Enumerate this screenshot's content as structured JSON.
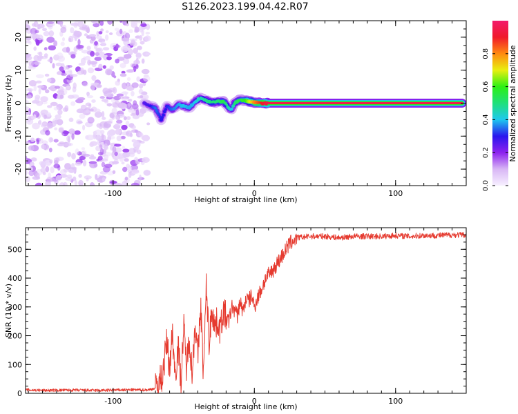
{
  "title": "S126.2023.199.04.42.R07",
  "colors": {
    "snr_line": "#e53a2f",
    "axis": "#000000",
    "colormap": [
      "#f7f0ff",
      "#d8b6f5",
      "#8d22ee",
      "#2a16ee",
      "#1ec8ee",
      "#1fe07a",
      "#2cf014",
      "#e8ef10",
      "#ff8a10",
      "#f01a2a",
      "#f21a6b"
    ]
  },
  "chart_data": [
    {
      "type": "heatmap",
      "name": "spectrogram",
      "xlabel": "Height of straight line (km)",
      "ylabel": "Frequency (Hz)",
      "xlim": [
        -162,
        150
      ],
      "ylim": [
        -25,
        25
      ],
      "xticks": [
        -100,
        0,
        100
      ],
      "xticklabels": [
        "-100",
        "0",
        "100"
      ],
      "yticks": [
        -20,
        -10,
        0,
        10,
        20
      ],
      "yticklabels": [
        "-20",
        "-10",
        "0",
        "10",
        "20"
      ],
      "noise_region_x": [
        -162,
        -75
      ],
      "tone_track": {
        "x": [
          -78,
          -73,
          -70,
          -66,
          -62,
          -58,
          -54,
          -50,
          -46,
          -42,
          -38,
          -34,
          -30,
          -26,
          -22,
          -18,
          -16,
          -14,
          -10,
          -6,
          -3,
          0,
          5,
          10,
          40,
          80,
          120,
          147
        ],
        "freq": [
          0,
          -1,
          -1.5,
          -5,
          -1,
          -2,
          -0.5,
          -0.8,
          -1.5,
          0.5,
          1.5,
          0.8,
          0.2,
          0.5,
          0.6,
          -1.5,
          -2,
          0,
          1,
          0.8,
          0.5,
          0.2,
          0,
          0,
          0,
          0,
          0,
          0
        ],
        "amplitude": [
          0.25,
          0.3,
          0.35,
          0.3,
          0.3,
          0.35,
          0.38,
          0.4,
          0.38,
          0.4,
          0.45,
          0.48,
          0.5,
          0.5,
          0.55,
          0.45,
          0.4,
          0.5,
          0.55,
          0.6,
          0.7,
          0.8,
          0.9,
          0.95,
          0.95,
          0.95,
          0.95,
          0.95
        ]
      },
      "colorbar": {
        "label": "Normalized spectral amplitude",
        "range": [
          0.0,
          1.0
        ],
        "ticks": [
          0.0,
          0.2,
          0.4,
          0.6,
          0.8
        ],
        "ticklabels": [
          "0.0",
          "0.2",
          "0.4",
          "0.6",
          "0.8"
        ]
      }
    },
    {
      "type": "line",
      "name": "snr",
      "xlabel": "Height of straight line (km)",
      "ylabel": "SNR (10 * v/v)",
      "xlim": [
        -162,
        150
      ],
      "ylim": [
        0,
        575
      ],
      "xticks": [
        -100,
        0,
        100
      ],
      "xticklabels": [
        "-100",
        "0",
        "100"
      ],
      "yticks": [
        0,
        100,
        200,
        300,
        400,
        500
      ],
      "yticklabels": [
        "0",
        "100",
        "200",
        "300",
        "400",
        "500"
      ],
      "series": [
        {
          "name": "SNR",
          "x": [
            -162,
            -150,
            -130,
            -110,
            -90,
            -75,
            -70,
            -65,
            -62,
            -60,
            -58,
            -56,
            -54,
            -52,
            -50,
            -48,
            -46,
            -44,
            -42,
            -40,
            -38,
            -36,
            -34,
            -32,
            -30,
            -28,
            -26,
            -24,
            -22,
            -20,
            -18,
            -16,
            -14,
            -12,
            -10,
            -8,
            -6,
            -4,
            -2,
            0,
            2,
            5,
            8,
            12,
            16,
            20,
            25,
            30,
            40,
            50,
            60,
            70,
            80,
            90,
            100,
            110,
            120,
            130,
            140,
            150
          ],
          "y": [
            12,
            10,
            11,
            10,
            12,
            12,
            18,
            60,
            180,
            90,
            210,
            60,
            170,
            40,
            230,
            90,
            200,
            60,
            250,
            120,
            310,
            60,
            380,
            170,
            300,
            230,
            250,
            220,
            290,
            260,
            250,
            300,
            290,
            270,
            320,
            280,
            330,
            320,
            340,
            300,
            330,
            360,
            400,
            420,
            450,
            480,
            520,
            540,
            545,
            545,
            540,
            545,
            545,
            545,
            548,
            545,
            548,
            548,
            550,
            550
          ]
        }
      ]
    }
  ]
}
